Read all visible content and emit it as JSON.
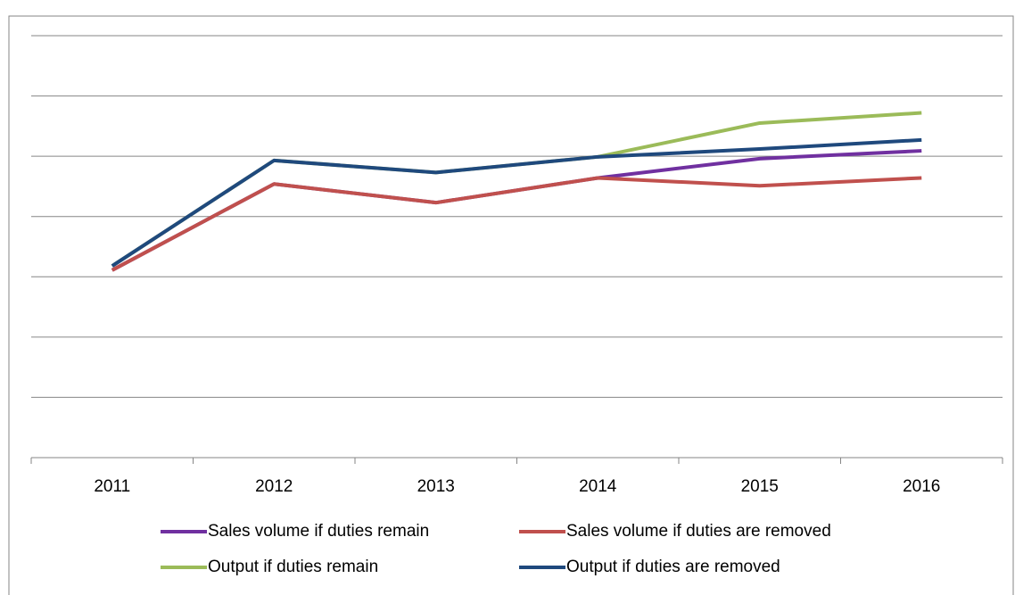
{
  "chart_data": {
    "type": "line",
    "categories": [
      "2011",
      "2012",
      "2013",
      "2014",
      "2015",
      "2016"
    ],
    "series": [
      {
        "name": "Sales volume if duties remain",
        "color": "#7030a0",
        "values": [
          3.11,
          4.54,
          4.23,
          4.64,
          4.96,
          5.09
        ]
      },
      {
        "name": "Sales volume if duties are removed",
        "color": "#c0504d",
        "values": [
          3.11,
          4.54,
          4.23,
          4.64,
          4.51,
          4.64
        ]
      },
      {
        "name": "Output if duties remain",
        "color": "#9bbb59",
        "values": [
          3.18,
          4.93,
          4.73,
          4.99,
          5.55,
          5.72
        ]
      },
      {
        "name": "Output if duties are removed",
        "color": "#1f497d",
        "values": [
          3.18,
          4.93,
          4.73,
          4.99,
          5.12,
          5.27
        ]
      }
    ],
    "ylim": [
      0,
      7
    ],
    "yticks": [
      0,
      1,
      2,
      3,
      4,
      5,
      6,
      7
    ],
    "grid": true
  }
}
